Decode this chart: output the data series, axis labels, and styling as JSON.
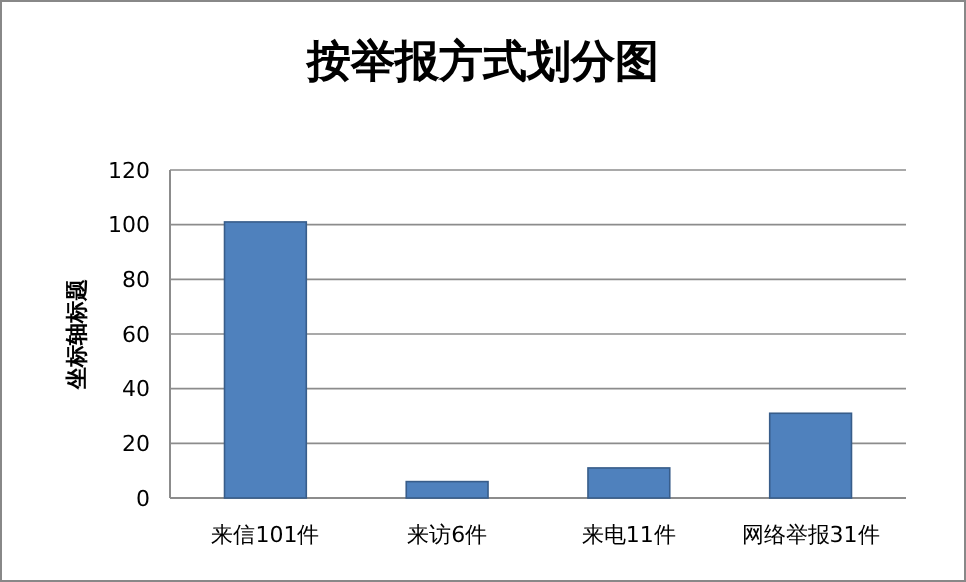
{
  "chart_data": {
    "type": "bar",
    "title": "按举报方式划分图",
    "ylabel": "坐标轴标题",
    "categories": [
      "来信101件",
      "来访6件",
      "来电11件",
      "网络举报31件"
    ],
    "values": [
      101,
      6,
      11,
      31
    ],
    "color": "#4f81bd",
    "ylim": [
      0,
      120
    ],
    "yticks": [
      0,
      20,
      40,
      60,
      80,
      100,
      120
    ],
    "grid": "y"
  }
}
